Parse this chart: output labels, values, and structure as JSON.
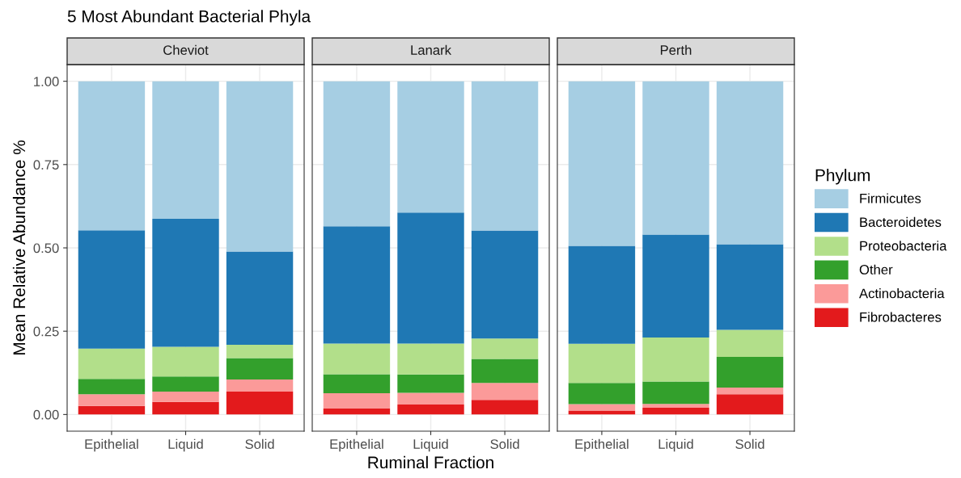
{
  "chart_data": [
    {
      "type": "bar",
      "title": "5 Most Abundant Bacterial Phyla",
      "subtitle": "Cheviot",
      "ylabel": "Mean Relative Abundance %",
      "legend": "right",
      "legend_title": "Phylum",
      "stacked": true,
      "grid": true,
      "categories": [
        "Epithelial",
        "Liquid",
        "Solid"
      ],
      "ylim": [
        -0.05,
        1.05
      ],
      "yticks": [
        {
          "value": 0,
          "label": "0.00"
        },
        {
          "value": 0.25,
          "label": "0.25"
        },
        {
          "value": 0.5,
          "label": "0.50"
        },
        {
          "value": 0.75,
          "label": "0.75"
        },
        {
          "value": 1,
          "label": "1.00"
        }
      ],
      "series": [
        {
          "name": "Fibrobacteres",
          "color": "#e31a1c",
          "values": [
            0.026,
            0.038,
            0.069
          ]
        },
        {
          "name": "Actinobacteria",
          "color": "#fb9a99",
          "values": [
            0.035,
            0.031,
            0.036
          ]
        },
        {
          "name": "Other",
          "color": "#33a02c",
          "values": [
            0.046,
            0.045,
            0.064
          ]
        },
        {
          "name": "Proteobacteria",
          "color": "#b2df8a",
          "values": [
            0.091,
            0.089,
            0.04
          ]
        },
        {
          "name": "Bacteroidetes",
          "color": "#1f78b4",
          "values": [
            0.355,
            0.384,
            0.28
          ]
        },
        {
          "name": "Firmicutes",
          "color": "#a6cee3",
          "values": [
            0.447,
            0.413,
            0.511
          ]
        }
      ]
    },
    {
      "type": "bar",
      "subtitle": "Lanark",
      "xlabel": "Ruminal Fraction",
      "stacked": true,
      "grid": true,
      "tick_labels": "x",
      "categories": [
        "Epithelial",
        "Liquid",
        "Solid"
      ],
      "ylim": [
        -0.05,
        1.05
      ],
      "yticks": [
        0,
        0.25,
        0.5,
        0.75,
        1
      ],
      "series": [
        {
          "color": "#e31a1c",
          "values": [
            0.018,
            0.03,
            0.044
          ]
        },
        {
          "color": "#fb9a99",
          "values": [
            0.046,
            0.035,
            0.051
          ]
        },
        {
          "color": "#33a02c",
          "values": [
            0.057,
            0.055,
            0.072
          ]
        },
        {
          "color": "#b2df8a",
          "values": [
            0.092,
            0.093,
            0.061
          ]
        },
        {
          "color": "#1f78b4",
          "values": [
            0.352,
            0.393,
            0.324
          ]
        },
        {
          "color": "#a6cee3",
          "values": [
            0.435,
            0.394,
            0.448
          ]
        }
      ]
    },
    {
      "type": "bar",
      "subtitle": "Perth",
      "stacked": true,
      "grid": true,
      "tick_labels": "x",
      "categories": [
        "Epithelial",
        "Liquid",
        "Solid"
      ],
      "ylim": [
        -0.05,
        1.05
      ],
      "yticks": [
        0,
        0.25,
        0.5,
        0.75,
        1
      ],
      "series": [
        {
          "color": "#e31a1c",
          "values": [
            0.012,
            0.02,
            0.061
          ]
        },
        {
          "color": "#fb9a99",
          "values": [
            0.019,
            0.012,
            0.02
          ]
        },
        {
          "color": "#33a02c",
          "values": [
            0.064,
            0.067,
            0.092
          ]
        },
        {
          "color": "#b2df8a",
          "values": [
            0.117,
            0.132,
            0.081
          ]
        },
        {
          "color": "#1f78b4",
          "values": [
            0.294,
            0.309,
            0.257
          ]
        },
        {
          "color": "#a6cee3",
          "values": [
            0.494,
            0.46,
            0.489
          ]
        }
      ]
    }
  ]
}
